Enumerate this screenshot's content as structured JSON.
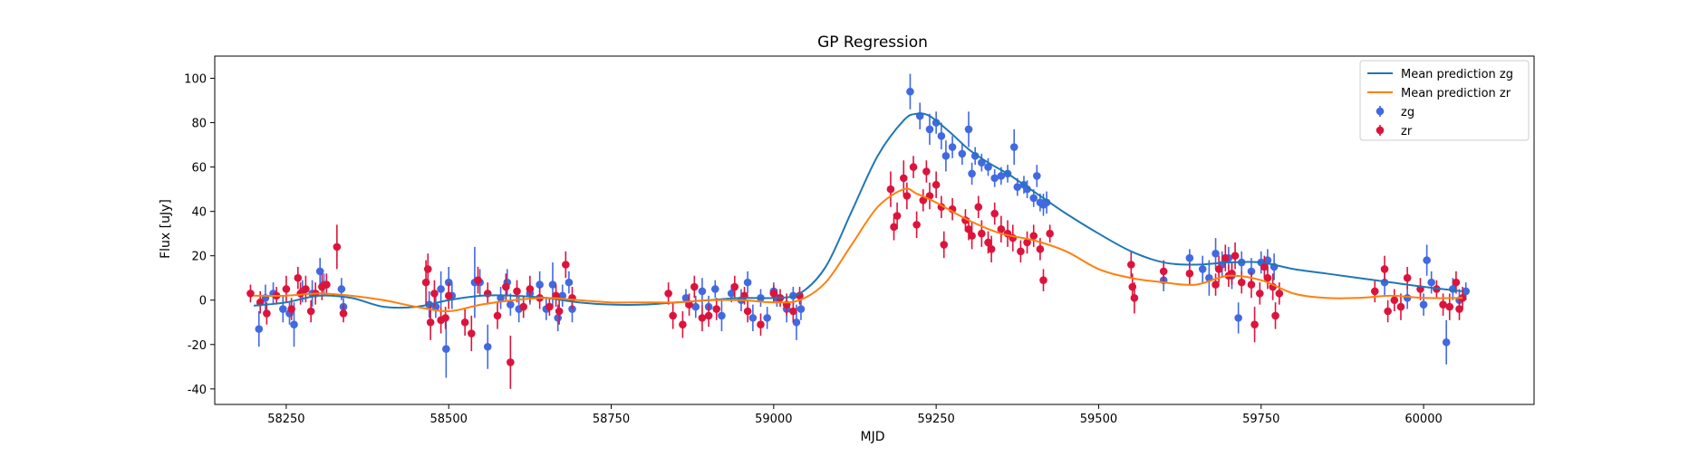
{
  "chart_data": {
    "type": "scatter",
    "title": "GP Regression",
    "xlabel": "MJD",
    "ylabel": "Flux [uJy]",
    "xlim": [
      58140,
      60170
    ],
    "ylim": [
      -47,
      110
    ],
    "xticks": [
      58250,
      58500,
      58750,
      59000,
      59250,
      59500,
      59750,
      60000
    ],
    "yticks": [
      -40,
      -20,
      0,
      20,
      40,
      60,
      80,
      100
    ],
    "grid": false,
    "legend_position": "top-right",
    "legend": [
      "Mean prediction zg",
      "Mean prediction zr",
      "zg",
      "zr"
    ],
    "colors": {
      "mean_zg": "#1f77b4",
      "mean_zr": "#ff7f0e",
      "zg": "#4169e1",
      "zr": "#dc143c"
    },
    "series": [
      {
        "name": "Mean prediction zg",
        "kind": "line",
        "color": "#1f77b4",
        "x": [
          58200,
          58250,
          58300,
          58350,
          58400,
          58450,
          58500,
          58550,
          58600,
          58650,
          58700,
          58750,
          58800,
          58850,
          58900,
          58950,
          59000,
          59040,
          59080,
          59120,
          59160,
          59200,
          59220,
          59240,
          59270,
          59300,
          59330,
          59360,
          59390,
          59420,
          59450,
          59500,
          59550,
          59600,
          59650,
          59700,
          59750,
          59800,
          59850,
          59900,
          59950,
          60000,
          60060
        ],
        "y": [
          -2.5,
          -1,
          2,
          1,
          -3,
          -3,
          0,
          2,
          2,
          1,
          -1,
          -2,
          -2,
          -1,
          0,
          1,
          1,
          3,
          15,
          40,
          65,
          81,
          84,
          83,
          76,
          68,
          62,
          57,
          51,
          45,
          39,
          30,
          22,
          17,
          16,
          17,
          17,
          14,
          12,
          10,
          8,
          6,
          4
        ]
      },
      {
        "name": "Mean prediction zr",
        "kind": "line",
        "color": "#ff7f0e",
        "x": [
          58200,
          58250,
          58300,
          58350,
          58400,
          58450,
          58500,
          58550,
          58600,
          58650,
          58700,
          58750,
          58800,
          58850,
          58900,
          58950,
          59000,
          59040,
          59080,
          59120,
          59160,
          59200,
          59220,
          59250,
          59300,
          59350,
          59400,
          59450,
          59500,
          59550,
          59600,
          59650,
          59700,
          59750,
          59800,
          59850,
          59900,
          59950,
          60000,
          60060
        ],
        "y": [
          2,
          2,
          3,
          2,
          0,
          -3,
          -5,
          -2,
          0,
          1,
          0,
          -1,
          -1,
          -1,
          0,
          0,
          -1,
          0,
          8,
          25,
          42,
          50,
          48,
          44,
          36,
          30,
          27,
          22,
          14,
          10,
          8,
          7,
          11,
          9,
          3,
          1,
          1,
          2,
          1,
          1
        ]
      },
      {
        "name": "zg",
        "kind": "errorbar",
        "color": "#4169e1",
        "points": [
          [
            58208,
            -13,
            8
          ],
          [
            58218,
            1,
            6
          ],
          [
            58230,
            3,
            5
          ],
          [
            58245,
            -4,
            6
          ],
          [
            58255,
            -6,
            5
          ],
          [
            58262,
            -11,
            10
          ],
          [
            58275,
            4,
            5
          ],
          [
            58290,
            3,
            6
          ],
          [
            58302,
            13,
            6
          ],
          [
            58308,
            7,
            5
          ],
          [
            58335,
            5,
            5
          ],
          [
            58338,
            -3,
            4
          ],
          [
            58470,
            -2,
            6
          ],
          [
            58480,
            -3,
            5
          ],
          [
            58488,
            5,
            8
          ],
          [
            58496,
            -22,
            13
          ],
          [
            58500,
            8,
            7
          ],
          [
            58505,
            2,
            6
          ],
          [
            58540,
            8,
            16
          ],
          [
            58548,
            8,
            6
          ],
          [
            58560,
            -21,
            10
          ],
          [
            58580,
            1,
            5
          ],
          [
            58590,
            8,
            6
          ],
          [
            58595,
            -2,
            5
          ],
          [
            58608,
            -4,
            6
          ],
          [
            58625,
            3,
            5
          ],
          [
            58640,
            7,
            6
          ],
          [
            58650,
            -4,
            5
          ],
          [
            58660,
            7,
            10
          ],
          [
            58668,
            -8,
            6
          ],
          [
            58675,
            2,
            5
          ],
          [
            58685,
            8,
            5
          ],
          [
            58690,
            -4,
            6
          ],
          [
            58865,
            1,
            4
          ],
          [
            58880,
            -3,
            5
          ],
          [
            58890,
            4,
            6
          ],
          [
            58900,
            -3,
            5
          ],
          [
            58910,
            5,
            4
          ],
          [
            58920,
            -7,
            7
          ],
          [
            58935,
            3,
            4
          ],
          [
            58950,
            0,
            5
          ],
          [
            58960,
            8,
            5
          ],
          [
            58968,
            -8,
            6
          ],
          [
            58980,
            1,
            4
          ],
          [
            58990,
            -8,
            5
          ],
          [
            59000,
            4,
            4
          ],
          [
            59005,
            1,
            4
          ],
          [
            59020,
            -4,
            6
          ],
          [
            59030,
            2,
            4
          ],
          [
            59035,
            -10,
            8
          ],
          [
            59042,
            -4,
            5
          ],
          [
            59210,
            94,
            8
          ],
          [
            59225,
            83,
            6
          ],
          [
            59240,
            77,
            7
          ],
          [
            59250,
            80,
            5
          ],
          [
            59258,
            74,
            6
          ],
          [
            59265,
            65,
            7
          ],
          [
            59275,
            69,
            5
          ],
          [
            59290,
            66,
            5
          ],
          [
            59300,
            77,
            8
          ],
          [
            59305,
            57,
            5
          ],
          [
            59310,
            65,
            4
          ],
          [
            59320,
            62,
            4
          ],
          [
            59330,
            60,
            4
          ],
          [
            59340,
            55,
            4
          ],
          [
            59350,
            56,
            4
          ],
          [
            59360,
            57,
            4
          ],
          [
            59370,
            69,
            8
          ],
          [
            59375,
            51,
            4
          ],
          [
            59385,
            52,
            4
          ],
          [
            59390,
            50,
            4
          ],
          [
            59400,
            46,
            4
          ],
          [
            59405,
            56,
            5
          ],
          [
            59410,
            44,
            4
          ],
          [
            59415,
            43,
            5
          ],
          [
            59420,
            44,
            5
          ],
          [
            59600,
            9,
            5
          ],
          [
            59640,
            19,
            4
          ],
          [
            59660,
            14,
            6
          ],
          [
            59670,
            10,
            8
          ],
          [
            59680,
            21,
            7
          ],
          [
            59690,
            16,
            6
          ],
          [
            59700,
            19,
            5
          ],
          [
            59705,
            11,
            6
          ],
          [
            59715,
            -8,
            7
          ],
          [
            59720,
            17,
            5
          ],
          [
            59735,
            13,
            6
          ],
          [
            59750,
            17,
            5
          ],
          [
            59760,
            18,
            5
          ],
          [
            59770,
            15,
            6
          ],
          [
            59940,
            8,
            6
          ],
          [
            59975,
            1,
            5
          ],
          [
            60000,
            -2,
            5
          ],
          [
            60005,
            18,
            7
          ],
          [
            60012,
            8,
            5
          ],
          [
            60035,
            -19,
            10
          ],
          [
            60045,
            5,
            5
          ],
          [
            60055,
            0,
            5
          ],
          [
            60065,
            4,
            4
          ]
        ]
      },
      {
        "name": "zr",
        "kind": "errorbar",
        "color": "#dc143c",
        "points": [
          [
            58195,
            3,
            4
          ],
          [
            58210,
            -1,
            5
          ],
          [
            58220,
            -6,
            5
          ],
          [
            58235,
            2,
            4
          ],
          [
            58250,
            5,
            6
          ],
          [
            58258,
            -4,
            5
          ],
          [
            58268,
            10,
            5
          ],
          [
            58272,
            3,
            5
          ],
          [
            58280,
            5,
            6
          ],
          [
            58288,
            -5,
            5
          ],
          [
            58295,
            3,
            5
          ],
          [
            58305,
            6,
            6
          ],
          [
            58312,
            7,
            5
          ],
          [
            58328,
            24,
            10
          ],
          [
            58338,
            -6,
            4
          ],
          [
            58465,
            8,
            10
          ],
          [
            58468,
            14,
            7
          ],
          [
            58472,
            -10,
            8
          ],
          [
            58478,
            3,
            6
          ],
          [
            58488,
            -9,
            6
          ],
          [
            58495,
            -8,
            5
          ],
          [
            58500,
            2,
            6
          ],
          [
            58525,
            -10,
            6
          ],
          [
            58535,
            -15,
            8
          ],
          [
            58545,
            9,
            6
          ],
          [
            58560,
            3,
            5
          ],
          [
            58575,
            -7,
            6
          ],
          [
            58588,
            6,
            6
          ],
          [
            58595,
            -28,
            12
          ],
          [
            58605,
            4,
            5
          ],
          [
            58615,
            -3,
            5
          ],
          [
            58625,
            5,
            6
          ],
          [
            58640,
            1,
            5
          ],
          [
            58655,
            -3,
            4
          ],
          [
            58665,
            2,
            5
          ],
          [
            58670,
            -5,
            6
          ],
          [
            58680,
            16,
            6
          ],
          [
            58690,
            1,
            5
          ],
          [
            58838,
            3,
            5
          ],
          [
            58845,
            -7,
            6
          ],
          [
            58860,
            -11,
            6
          ],
          [
            58870,
            -2,
            5
          ],
          [
            58878,
            6,
            5
          ],
          [
            58890,
            -8,
            6
          ],
          [
            58900,
            -7,
            5
          ],
          [
            58912,
            -4,
            5
          ],
          [
            58940,
            6,
            5
          ],
          [
            58955,
            2,
            4
          ],
          [
            58960,
            -5,
            5
          ],
          [
            58980,
            -11,
            5
          ],
          [
            59000,
            3,
            4
          ],
          [
            59010,
            1,
            4
          ],
          [
            59020,
            -2,
            5
          ],
          [
            59030,
            -5,
            5
          ],
          [
            59040,
            2,
            4
          ],
          [
            59180,
            50,
            8
          ],
          [
            59185,
            33,
            6
          ],
          [
            59190,
            38,
            6
          ],
          [
            59200,
            55,
            8
          ],
          [
            59205,
            47,
            6
          ],
          [
            59215,
            60,
            5
          ],
          [
            59220,
            34,
            6
          ],
          [
            59230,
            45,
            5
          ],
          [
            59235,
            58,
            5
          ],
          [
            59240,
            47,
            6
          ],
          [
            59250,
            52,
            6
          ],
          [
            59258,
            42,
            5
          ],
          [
            59262,
            25,
            6
          ],
          [
            59275,
            41,
            5
          ],
          [
            59295,
            36,
            5
          ],
          [
            59300,
            32,
            5
          ],
          [
            59305,
            29,
            6
          ],
          [
            59315,
            42,
            5
          ],
          [
            59320,
            30,
            6
          ],
          [
            59330,
            26,
            5
          ],
          [
            59335,
            23,
            6
          ],
          [
            59340,
            39,
            5
          ],
          [
            59350,
            32,
            6
          ],
          [
            59360,
            30,
            6
          ],
          [
            59368,
            28,
            6
          ],
          [
            59380,
            22,
            5
          ],
          [
            59390,
            26,
            5
          ],
          [
            59400,
            29,
            5
          ],
          [
            59410,
            23,
            5
          ],
          [
            59415,
            9,
            5
          ],
          [
            59425,
            30,
            4
          ],
          [
            59550,
            16,
            6
          ],
          [
            59552,
            6,
            6
          ],
          [
            59555,
            1,
            7
          ],
          [
            59600,
            13,
            5
          ],
          [
            59640,
            12,
            5
          ],
          [
            59680,
            7,
            5
          ],
          [
            59685,
            14,
            6
          ],
          [
            59695,
            19,
            6
          ],
          [
            59700,
            11,
            5
          ],
          [
            59705,
            12,
            5
          ],
          [
            59710,
            20,
            6
          ],
          [
            59720,
            8,
            5
          ],
          [
            59735,
            7,
            6
          ],
          [
            59740,
            -11,
            8
          ],
          [
            59748,
            3,
            5
          ],
          [
            59755,
            15,
            5
          ],
          [
            59760,
            10,
            5
          ],
          [
            59768,
            6,
            6
          ],
          [
            59772,
            -7,
            6
          ],
          [
            59778,
            3,
            5
          ],
          [
            59925,
            4,
            5
          ],
          [
            59940,
            14,
            6
          ],
          [
            59945,
            -5,
            5
          ],
          [
            59955,
            0,
            5
          ],
          [
            59965,
            -3,
            6
          ],
          [
            59975,
            10,
            5
          ],
          [
            59995,
            5,
            5
          ],
          [
            60020,
            5,
            4
          ],
          [
            60030,
            -2,
            5
          ],
          [
            60040,
            -3,
            6
          ],
          [
            60050,
            8,
            5
          ],
          [
            60055,
            -4,
            5
          ],
          [
            60060,
            1,
            5
          ]
        ]
      }
    ]
  }
}
